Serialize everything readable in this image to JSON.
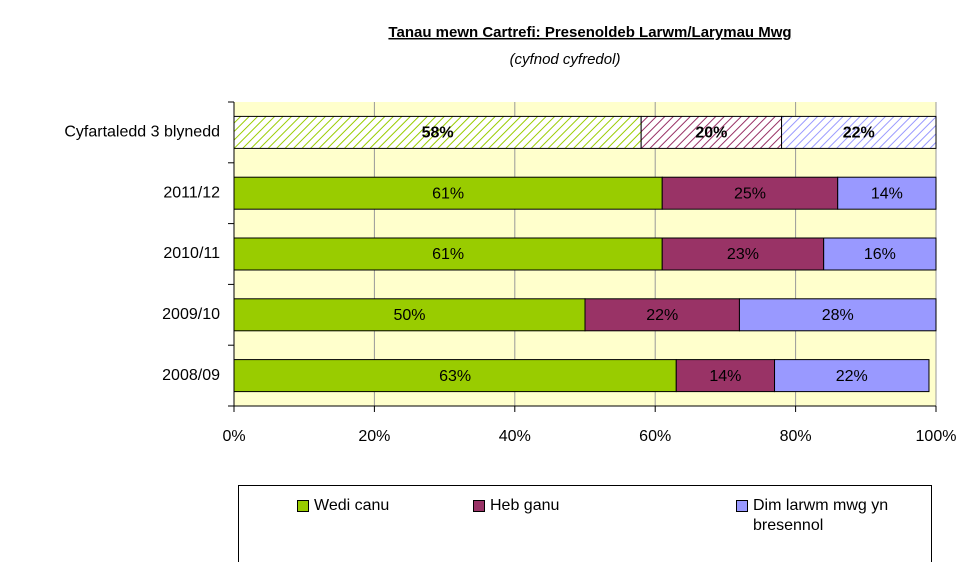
{
  "chart_data": {
    "type": "stacked-barh",
    "title": "Tanau mewn Cartrefi: Presenoldeb Larwm/Larymau Mwg",
    "subtitle": "(cyfnod cyfredol)",
    "categories": [
      "Cyfartaledd 3 blynedd",
      "2011/12",
      "2010/11",
      "2009/10",
      "2008/09"
    ],
    "hatched": [
      true,
      false,
      false,
      false,
      false
    ],
    "series": [
      {
        "name": "Wedi canu",
        "color": "#99cc00",
        "values": [
          58,
          61,
          61,
          50,
          63
        ],
        "value_labels": [
          "58%",
          "61%",
          "61%",
          "50%",
          "63%"
        ]
      },
      {
        "name": "Heb ganu",
        "color": "#993366",
        "values": [
          20,
          25,
          23,
          22,
          14
        ],
        "value_labels": [
          "20%",
          "25%",
          "23%",
          "22%",
          "14%"
        ]
      },
      {
        "name": "Dim larwm mwg yn bresennol",
        "color": "#9999ff",
        "values": [
          22,
          14,
          16,
          28,
          22
        ],
        "value_labels": [
          "22%",
          "14%",
          "16%",
          "28%",
          "22%"
        ]
      }
    ],
    "xlim": [
      0,
      100
    ],
    "xticks": [
      {
        "value": 0,
        "label": "0%"
      },
      {
        "value": 20,
        "label": "20%"
      },
      {
        "value": 40,
        "label": "40%"
      },
      {
        "value": 60,
        "label": "60%"
      },
      {
        "value": 80,
        "label": "80%"
      },
      {
        "value": 100,
        "label": "100%"
      }
    ],
    "grid": true,
    "legend": "bottom"
  }
}
